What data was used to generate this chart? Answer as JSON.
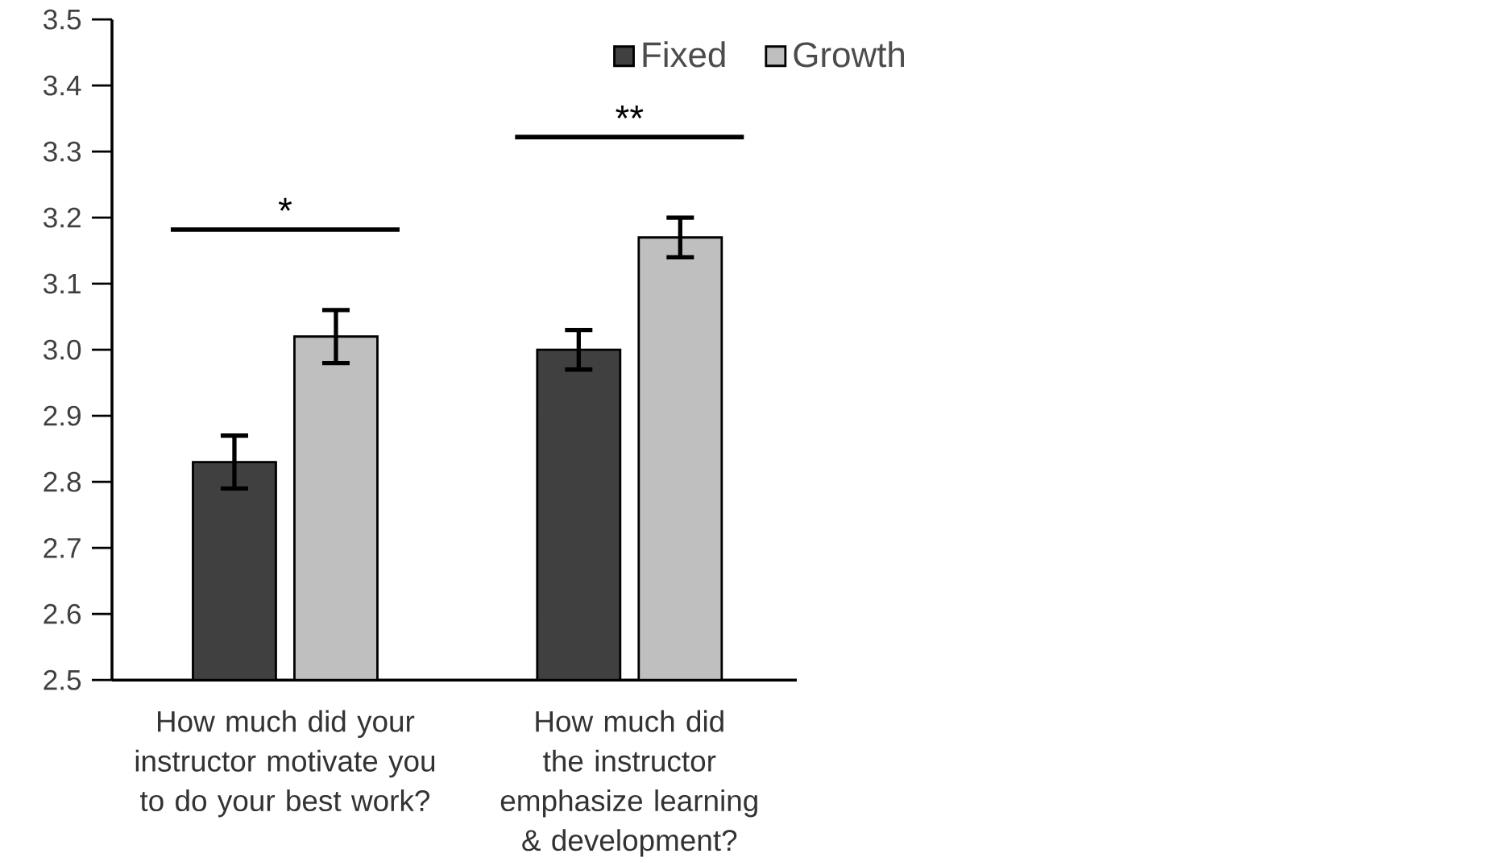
{
  "chart_data": {
    "type": "bar",
    "categories": [
      "How much did your instructor motivate you to do your best work?",
      "How much did the instructor emphasize learning & development?"
    ],
    "series": [
      {
        "name": "Fixed",
        "color": "#404040",
        "values": [
          2.83,
          3.0
        ],
        "errors": [
          0.04,
          0.03
        ]
      },
      {
        "name": "Growth",
        "color": "#bfbfbf",
        "values": [
          3.02,
          3.17
        ],
        "errors": [
          0.04,
          0.03
        ]
      }
    ],
    "ylim": [
      2.5,
      3.5
    ],
    "yticks": [
      2.5,
      2.6,
      2.7,
      2.8,
      2.9,
      {
        "value": 3.0,
        "label": "3.0"
      },
      3.1,
      3.2,
      3.3,
      3.4,
      3.5
    ],
    "legend": "top right",
    "annotations": [
      "*",
      "**"
    ]
  }
}
